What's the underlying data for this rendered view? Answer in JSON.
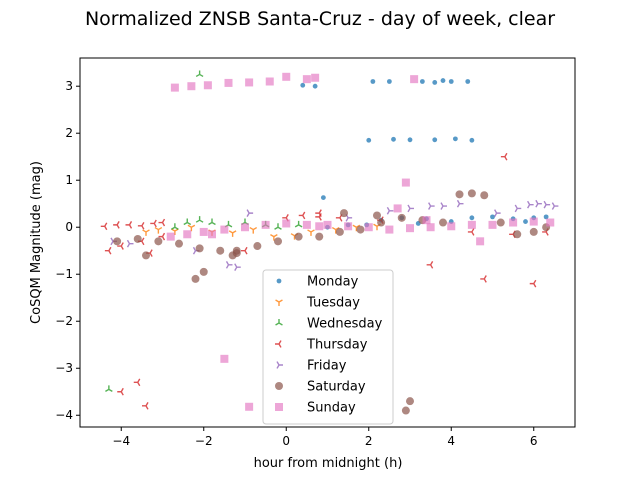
{
  "chart_data": {
    "type": "scatter",
    "title": "Normalized ZNSB Santa-Cruz - day of week, clear",
    "xlabel": "hour from midnight (h)",
    "ylabel": "CoSQM Magnitude (mag)",
    "xlim": [
      -5.0,
      7.0
    ],
    "ylim": [
      -4.25,
      3.6
    ],
    "xticks": [
      -4,
      -2,
      0,
      2,
      4,
      6
    ],
    "yticks": [
      -4,
      -3,
      -2,
      -1,
      0,
      1,
      2,
      3
    ],
    "grid": false,
    "legend_position": "lower center",
    "series": [
      {
        "name": "Monday",
        "color": "#1f77b4",
        "marker": "circle-small",
        "points": [
          [
            1.95,
            0.05
          ],
          [
            2.3,
            0.15
          ],
          [
            2.8,
            0.2
          ],
          [
            3.4,
            0.18
          ],
          [
            4.0,
            0.12
          ],
          [
            4.5,
            0.2
          ],
          [
            5.0,
            0.22
          ],
          [
            5.5,
            0.18
          ],
          [
            6.0,
            0.2
          ],
          [
            6.3,
            0.22
          ],
          [
            0.9,
            0.63
          ],
          [
            0.4,
            3.02
          ],
          [
            0.7,
            3.0
          ],
          [
            2.1,
            3.1
          ],
          [
            2.5,
            3.1
          ],
          [
            3.3,
            3.1
          ],
          [
            3.6,
            3.08
          ],
          [
            3.8,
            3.12
          ],
          [
            4.0,
            3.1
          ],
          [
            4.4,
            3.1
          ],
          [
            2.0,
            1.85
          ],
          [
            2.6,
            1.87
          ],
          [
            3.0,
            1.86
          ],
          [
            3.6,
            1.86
          ],
          [
            4.1,
            1.88
          ],
          [
            4.5,
            1.85
          ],
          [
            1.0,
            0.0
          ],
          [
            1.5,
            0.05
          ],
          [
            3.2,
            0.08
          ],
          [
            5.8,
            0.12
          ]
        ]
      },
      {
        "name": "Tuesday",
        "color": "#ff7f0e",
        "marker": "tri-down",
        "points": [
          [
            -3.4,
            -0.1
          ],
          [
            -3.1,
            -0.05
          ],
          [
            -2.7,
            -0.08
          ],
          [
            -2.3,
            0.0
          ],
          [
            -1.8,
            -0.1
          ],
          [
            -1.3,
            -0.12
          ],
          [
            -0.8,
            -0.05
          ],
          [
            -0.3,
            -0.2
          ],
          [
            0.2,
            -0.18
          ],
          [
            0.6,
            -0.1
          ],
          [
            1.2,
            -0.05
          ],
          [
            1.7,
            0.0
          ],
          [
            2.2,
            0.02
          ]
        ]
      },
      {
        "name": "Wednesday",
        "color": "#2ca02c",
        "marker": "tri-up",
        "points": [
          [
            -2.7,
            0.0
          ],
          [
            -2.4,
            0.1
          ],
          [
            -2.1,
            0.15
          ],
          [
            -1.8,
            0.1
          ],
          [
            -1.4,
            0.05
          ],
          [
            -1.0,
            0.1
          ],
          [
            -0.5,
            0.05
          ],
          [
            -2.1,
            3.25
          ],
          [
            -4.3,
            -3.45
          ],
          [
            -0.2,
            0.0
          ],
          [
            0.3,
            0.05
          ]
        ]
      },
      {
        "name": "Thursday",
        "color": "#d62728",
        "marker": "tri-left",
        "points": [
          [
            -4.4,
            0.02
          ],
          [
            -4.1,
            0.05
          ],
          [
            -3.8,
            0.05
          ],
          [
            -3.5,
            0.03
          ],
          [
            -3.2,
            0.08
          ],
          [
            -3.0,
            0.1
          ],
          [
            -4.3,
            -0.5
          ],
          [
            -4.0,
            -0.4
          ],
          [
            -3.5,
            -0.3
          ],
          [
            -3.0,
            -0.2
          ],
          [
            0.0,
            0.2
          ],
          [
            0.4,
            0.25
          ],
          [
            0.8,
            0.22
          ],
          [
            0.8,
            0.3
          ],
          [
            1.3,
            0.2
          ],
          [
            2.3,
            0.15
          ],
          [
            3.5,
            -0.8
          ],
          [
            4.8,
            -1.1
          ],
          [
            5.3,
            1.5
          ],
          [
            6.0,
            -1.2
          ],
          [
            -4.0,
            -3.5
          ],
          [
            -3.6,
            -3.3
          ],
          [
            -3.4,
            -3.8
          ],
          [
            -3.3,
            -0.55
          ],
          [
            4.5,
            -0.1
          ],
          [
            5.5,
            -0.15
          ],
          [
            6.3,
            -0.1
          ],
          [
            -1.0,
            -0.5
          ]
        ]
      },
      {
        "name": "Friday",
        "color": "#9467bd",
        "marker": "tri-right",
        "points": [
          [
            -4.2,
            -0.3
          ],
          [
            -3.8,
            -0.35
          ],
          [
            -1.4,
            -0.8
          ],
          [
            -1.2,
            -0.85
          ],
          [
            -0.9,
            0.3
          ],
          [
            1.5,
            0.2
          ],
          [
            2.5,
            0.35
          ],
          [
            3.0,
            0.4
          ],
          [
            3.5,
            0.45
          ],
          [
            3.8,
            0.45
          ],
          [
            4.2,
            0.5
          ],
          [
            5.1,
            0.3
          ],
          [
            5.6,
            0.4
          ],
          [
            5.9,
            0.48
          ],
          [
            6.1,
            0.5
          ],
          [
            6.3,
            0.48
          ],
          [
            6.5,
            0.45
          ],
          [
            -2.2,
            -0.5
          ]
        ]
      },
      {
        "name": "Saturday",
        "color": "#8c564b",
        "marker": "circle",
        "points": [
          [
            -4.1,
            -0.3
          ],
          [
            -3.6,
            -0.25
          ],
          [
            -3.1,
            -0.3
          ],
          [
            -2.6,
            -0.35
          ],
          [
            -2.1,
            -0.45
          ],
          [
            -1.6,
            -0.5
          ],
          [
            -1.2,
            -0.5
          ],
          [
            -0.7,
            -0.4
          ],
          [
            -0.2,
            -0.3
          ],
          [
            0.3,
            -0.2
          ],
          [
            0.8,
            -0.2
          ],
          [
            1.3,
            -0.1
          ],
          [
            1.8,
            -0.05
          ],
          [
            2.3,
            0.1
          ],
          [
            2.8,
            0.2
          ],
          [
            3.3,
            0.15
          ],
          [
            3.8,
            0.1
          ],
          [
            4.2,
            0.7
          ],
          [
            4.5,
            0.72
          ],
          [
            4.8,
            0.68
          ],
          [
            5.2,
            0.1
          ],
          [
            5.6,
            -0.15
          ],
          [
            6.0,
            -0.1
          ],
          [
            6.3,
            0.0
          ],
          [
            -3.4,
            -0.6
          ],
          [
            -2.0,
            -0.95
          ],
          [
            -2.2,
            -1.1
          ],
          [
            2.9,
            -3.9
          ],
          [
            3.0,
            -3.7
          ],
          [
            -1.2,
            -0.55
          ],
          [
            -1.3,
            -0.6
          ],
          [
            1.4,
            0.3
          ],
          [
            2.2,
            0.25
          ]
        ]
      },
      {
        "name": "Sunday",
        "color": "#e377c2",
        "marker": "square",
        "points": [
          [
            -2.7,
            2.97
          ],
          [
            -2.3,
            3.0
          ],
          [
            -1.9,
            3.02
          ],
          [
            -1.4,
            3.07
          ],
          [
            -0.9,
            3.08
          ],
          [
            -0.4,
            3.1
          ],
          [
            0.0,
            3.2
          ],
          [
            0.5,
            3.15
          ],
          [
            0.7,
            3.18
          ],
          [
            3.1,
            3.15
          ],
          [
            -2.8,
            -0.2
          ],
          [
            -2.4,
            -0.15
          ],
          [
            -2.0,
            -0.1
          ],
          [
            -1.5,
            -0.05
          ],
          [
            -1.0,
            0.0
          ],
          [
            -0.5,
            0.05
          ],
          [
            0.0,
            0.08
          ],
          [
            0.5,
            0.05
          ],
          [
            1.0,
            0.05
          ],
          [
            1.5,
            0.02
          ],
          [
            2.0,
            0.0
          ],
          [
            2.5,
            -0.05
          ],
          [
            3.0,
            -0.02
          ],
          [
            3.5,
            0.0
          ],
          [
            4.0,
            0.02
          ],
          [
            4.5,
            0.05
          ],
          [
            5.0,
            0.05
          ],
          [
            5.5,
            0.1
          ],
          [
            6.0,
            0.12
          ],
          [
            6.4,
            0.1
          ],
          [
            2.9,
            0.95
          ],
          [
            -1.5,
            -2.8
          ],
          [
            -0.9,
            -3.82
          ],
          [
            4.7,
            -0.3
          ],
          [
            2.7,
            0.4
          ],
          [
            3.4,
            0.15
          ],
          [
            -1.8,
            -0.15
          ],
          [
            0.8,
            0.02
          ]
        ]
      }
    ]
  }
}
